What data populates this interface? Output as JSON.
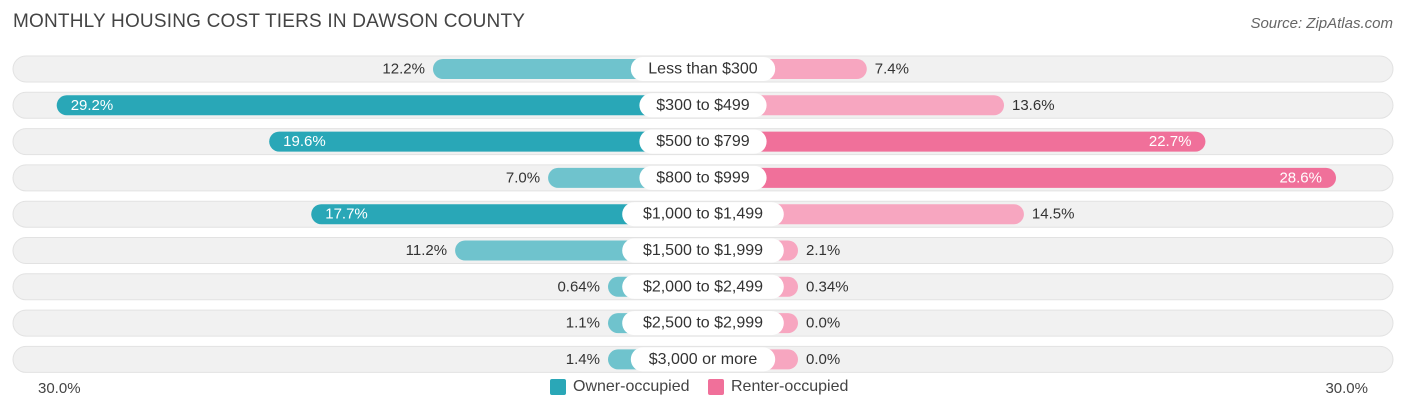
{
  "header": {
    "title": "MONTHLY HOUSING COST TIERS IN DAWSON COUNTY",
    "source": "Source: ZipAtlas.com"
  },
  "colors": {
    "owner_bar": "#6fc3cd",
    "owner_bar_strong": "#29a7b7",
    "renter_bar": "#f7a6c0",
    "renter_bar_strong": "#f0709a",
    "row_bg": "#ededed"
  },
  "axis": {
    "left_label": "30.0%",
    "right_label": "30.0%"
  },
  "legend": {
    "owner": "Owner-occupied",
    "renter": "Renter-occupied"
  },
  "chart_data": {
    "type": "bar",
    "orientation": "diverging-horizontal",
    "xlim": [
      0,
      30
    ],
    "categories": [
      "Less than $300",
      "$300 to $499",
      "$500 to $799",
      "$800 to $999",
      "$1,000 to $1,499",
      "$1,500 to $1,999",
      "$2,000 to $2,499",
      "$2,500 to $2,999",
      "$3,000 or more"
    ],
    "series": [
      {
        "name": "Owner-occupied",
        "values": [
          12.2,
          29.2,
          19.6,
          7.0,
          17.7,
          11.2,
          0.64,
          1.1,
          1.4
        ],
        "labels": [
          "12.2%",
          "29.2%",
          "19.6%",
          "7.0%",
          "17.7%",
          "11.2%",
          "0.64%",
          "1.1%",
          "1.4%"
        ]
      },
      {
        "name": "Renter-occupied",
        "values": [
          7.4,
          13.6,
          22.7,
          28.6,
          14.5,
          2.1,
          0.34,
          0.0,
          0.0
        ],
        "labels": [
          "7.4%",
          "13.6%",
          "22.7%",
          "28.6%",
          "14.5%",
          "2.1%",
          "0.34%",
          "0.0%",
          "0.0%"
        ]
      }
    ]
  }
}
